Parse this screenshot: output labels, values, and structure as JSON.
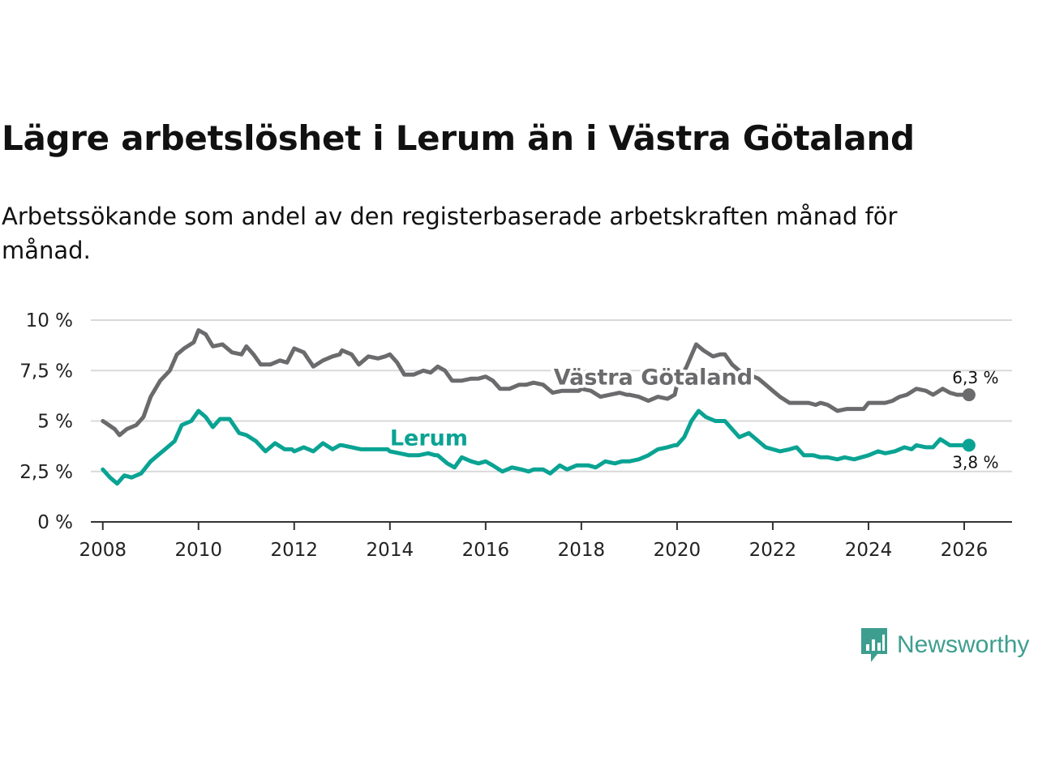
{
  "title": "Lägre arbetslöshet i Lerum än i Västra Götaland",
  "subtitle": "Arbetssökande som andel av den registerbaserade arbetskraften månad för månad.",
  "brand": "Newsworthy",
  "colors": {
    "lerum": "#0aa393",
    "vastra": "#6b6b6d",
    "grid": "#d9d9d9",
    "axis": "#333333",
    "brand": "#3d9e8f"
  },
  "chart_data": {
    "type": "line",
    "title": "Lägre arbetslöshet i Lerum än i Västra Götaland",
    "subtitle": "Arbetssökande som andel av den registerbaserade arbetskraften månad för månad.",
    "xlabel": "",
    "ylabel": "",
    "xlim": [
      2007.75,
      2027.0
    ],
    "ylim": [
      0,
      10
    ],
    "grid": true,
    "x_ticks": [
      2008,
      2010,
      2012,
      2014,
      2016,
      2018,
      2020,
      2022,
      2024,
      2026
    ],
    "x_tick_labels": [
      "2008",
      "2010",
      "2012",
      "2014",
      "2016",
      "2018",
      "2020",
      "2022",
      "2024",
      "2026"
    ],
    "y_ticks": [
      0,
      2.5,
      5,
      7.5,
      10
    ],
    "y_tick_labels": [
      "0 %",
      "2,5 %",
      "5 %",
      "7,5 %",
      "10 %"
    ],
    "series": [
      {
        "name": "Västra Götaland",
        "color": "#6b6b6d",
        "end_label": "6,3 %",
        "points": [
          [
            2008.0,
            5.0
          ],
          [
            2008.25,
            4.6
          ],
          [
            2008.35,
            4.3
          ],
          [
            2008.5,
            4.6
          ],
          [
            2008.7,
            4.8
          ],
          [
            2008.85,
            5.2
          ],
          [
            2009.0,
            6.2
          ],
          [
            2009.2,
            7.0
          ],
          [
            2009.4,
            7.5
          ],
          [
            2009.55,
            8.3
          ],
          [
            2009.7,
            8.6
          ],
          [
            2009.9,
            8.9
          ],
          [
            2010.0,
            9.5
          ],
          [
            2010.15,
            9.3
          ],
          [
            2010.3,
            8.7
          ],
          [
            2010.5,
            8.8
          ],
          [
            2010.7,
            8.4
          ],
          [
            2010.9,
            8.3
          ],
          [
            2011.0,
            8.7
          ],
          [
            2011.15,
            8.3
          ],
          [
            2011.3,
            7.8
          ],
          [
            2011.5,
            7.8
          ],
          [
            2011.7,
            8.0
          ],
          [
            2011.85,
            7.9
          ],
          [
            2012.0,
            8.6
          ],
          [
            2012.2,
            8.4
          ],
          [
            2012.4,
            7.7
          ],
          [
            2012.6,
            8.0
          ],
          [
            2012.8,
            8.2
          ],
          [
            2012.95,
            8.3
          ],
          [
            2013.0,
            8.5
          ],
          [
            2013.2,
            8.3
          ],
          [
            2013.35,
            7.8
          ],
          [
            2013.55,
            8.2
          ],
          [
            2013.75,
            8.1
          ],
          [
            2013.9,
            8.2
          ],
          [
            2014.0,
            8.3
          ],
          [
            2014.15,
            7.9
          ],
          [
            2014.3,
            7.3
          ],
          [
            2014.5,
            7.3
          ],
          [
            2014.7,
            7.5
          ],
          [
            2014.85,
            7.4
          ],
          [
            2015.0,
            7.7
          ],
          [
            2015.15,
            7.5
          ],
          [
            2015.3,
            7.0
          ],
          [
            2015.5,
            7.0
          ],
          [
            2015.7,
            7.1
          ],
          [
            2015.85,
            7.1
          ],
          [
            2016.0,
            7.2
          ],
          [
            2016.15,
            7.0
          ],
          [
            2016.3,
            6.6
          ],
          [
            2016.5,
            6.6
          ],
          [
            2016.7,
            6.8
          ],
          [
            2016.85,
            6.8
          ],
          [
            2017.0,
            6.9
          ],
          [
            2017.2,
            6.8
          ],
          [
            2017.4,
            6.4
          ],
          [
            2017.6,
            6.5
          ],
          [
            2017.8,
            6.5
          ],
          [
            2017.95,
            6.5
          ],
          [
            2018.0,
            6.6
          ],
          [
            2018.2,
            6.5
          ],
          [
            2018.4,
            6.2
          ],
          [
            2018.6,
            6.3
          ],
          [
            2018.8,
            6.4
          ],
          [
            2018.95,
            6.3
          ],
          [
            2019.0,
            6.3
          ],
          [
            2019.2,
            6.2
          ],
          [
            2019.4,
            6.0
          ],
          [
            2019.6,
            6.2
          ],
          [
            2019.8,
            6.1
          ],
          [
            2019.95,
            6.3
          ],
          [
            2020.0,
            6.8
          ],
          [
            2020.2,
            7.7
          ],
          [
            2020.4,
            8.8
          ],
          [
            2020.55,
            8.5
          ],
          [
            2020.75,
            8.2
          ],
          [
            2020.9,
            8.3
          ],
          [
            2021.0,
            8.3
          ],
          [
            2021.15,
            7.8
          ],
          [
            2021.3,
            7.5
          ],
          [
            2021.5,
            7.3
          ],
          [
            2021.7,
            7.1
          ],
          [
            2021.85,
            6.8
          ],
          [
            2022.0,
            6.5
          ],
          [
            2022.15,
            6.2
          ],
          [
            2022.35,
            5.9
          ],
          [
            2022.55,
            5.9
          ],
          [
            2022.75,
            5.9
          ],
          [
            2022.9,
            5.8
          ],
          [
            2023.0,
            5.9
          ],
          [
            2023.15,
            5.8
          ],
          [
            2023.35,
            5.5
          ],
          [
            2023.55,
            5.6
          ],
          [
            2023.75,
            5.6
          ],
          [
            2023.9,
            5.6
          ],
          [
            2024.0,
            5.9
          ],
          [
            2024.15,
            5.9
          ],
          [
            2024.35,
            5.9
          ],
          [
            2024.5,
            6.0
          ],
          [
            2024.65,
            6.2
          ],
          [
            2024.8,
            6.3
          ],
          [
            2025.0,
            6.6
          ],
          [
            2025.2,
            6.5
          ],
          [
            2025.35,
            6.3
          ],
          [
            2025.55,
            6.6
          ],
          [
            2025.7,
            6.4
          ],
          [
            2025.85,
            6.3
          ],
          [
            2026.1,
            6.3
          ]
        ]
      },
      {
        "name": "Lerum",
        "color": "#0aa393",
        "end_label": "3,8 %",
        "points": [
          [
            2008.0,
            2.6
          ],
          [
            2008.15,
            2.2
          ],
          [
            2008.3,
            1.9
          ],
          [
            2008.45,
            2.3
          ],
          [
            2008.6,
            2.2
          ],
          [
            2008.8,
            2.4
          ],
          [
            2009.0,
            3.0
          ],
          [
            2009.15,
            3.3
          ],
          [
            2009.3,
            3.6
          ],
          [
            2009.5,
            4.0
          ],
          [
            2009.65,
            4.8
          ],
          [
            2009.85,
            5.0
          ],
          [
            2010.0,
            5.5
          ],
          [
            2010.15,
            5.2
          ],
          [
            2010.3,
            4.7
          ],
          [
            2010.45,
            5.1
          ],
          [
            2010.65,
            5.1
          ],
          [
            2010.85,
            4.4
          ],
          [
            2011.0,
            4.3
          ],
          [
            2011.2,
            4.0
          ],
          [
            2011.4,
            3.5
          ],
          [
            2011.6,
            3.9
          ],
          [
            2011.8,
            3.6
          ],
          [
            2011.95,
            3.6
          ],
          [
            2012.0,
            3.5
          ],
          [
            2012.2,
            3.7
          ],
          [
            2012.4,
            3.5
          ],
          [
            2012.6,
            3.9
          ],
          [
            2012.8,
            3.6
          ],
          [
            2012.95,
            3.8
          ],
          [
            2013.0,
            3.8
          ],
          [
            2013.2,
            3.7
          ],
          [
            2013.4,
            3.6
          ],
          [
            2013.6,
            3.6
          ],
          [
            2013.8,
            3.6
          ],
          [
            2013.95,
            3.6
          ],
          [
            2014.0,
            3.5
          ],
          [
            2014.2,
            3.4
          ],
          [
            2014.4,
            3.3
          ],
          [
            2014.6,
            3.3
          ],
          [
            2014.8,
            3.4
          ],
          [
            2014.95,
            3.3
          ],
          [
            2015.0,
            3.3
          ],
          [
            2015.2,
            2.9
          ],
          [
            2015.35,
            2.7
          ],
          [
            2015.5,
            3.2
          ],
          [
            2015.7,
            3.0
          ],
          [
            2015.85,
            2.9
          ],
          [
            2016.0,
            3.0
          ],
          [
            2016.15,
            2.8
          ],
          [
            2016.35,
            2.5
          ],
          [
            2016.55,
            2.7
          ],
          [
            2016.75,
            2.6
          ],
          [
            2016.9,
            2.5
          ],
          [
            2017.0,
            2.6
          ],
          [
            2017.2,
            2.6
          ],
          [
            2017.35,
            2.4
          ],
          [
            2017.55,
            2.8
          ],
          [
            2017.7,
            2.6
          ],
          [
            2017.9,
            2.8
          ],
          [
            2018.0,
            2.8
          ],
          [
            2018.15,
            2.8
          ],
          [
            2018.3,
            2.7
          ],
          [
            2018.5,
            3.0
          ],
          [
            2018.7,
            2.9
          ],
          [
            2018.85,
            3.0
          ],
          [
            2019.0,
            3.0
          ],
          [
            2019.2,
            3.1
          ],
          [
            2019.4,
            3.3
          ],
          [
            2019.6,
            3.6
          ],
          [
            2019.8,
            3.7
          ],
          [
            2019.95,
            3.8
          ],
          [
            2020.0,
            3.8
          ],
          [
            2020.15,
            4.2
          ],
          [
            2020.3,
            5.0
          ],
          [
            2020.45,
            5.5
          ],
          [
            2020.6,
            5.2
          ],
          [
            2020.8,
            5.0
          ],
          [
            2021.0,
            5.0
          ],
          [
            2021.15,
            4.6
          ],
          [
            2021.3,
            4.2
          ],
          [
            2021.5,
            4.4
          ],
          [
            2021.7,
            4.0
          ],
          [
            2021.85,
            3.7
          ],
          [
            2022.0,
            3.6
          ],
          [
            2022.15,
            3.5
          ],
          [
            2022.35,
            3.6
          ],
          [
            2022.5,
            3.7
          ],
          [
            2022.65,
            3.3
          ],
          [
            2022.85,
            3.3
          ],
          [
            2023.0,
            3.2
          ],
          [
            2023.15,
            3.2
          ],
          [
            2023.35,
            3.1
          ],
          [
            2023.5,
            3.2
          ],
          [
            2023.7,
            3.1
          ],
          [
            2023.85,
            3.2
          ],
          [
            2024.0,
            3.3
          ],
          [
            2024.2,
            3.5
          ],
          [
            2024.35,
            3.4
          ],
          [
            2024.55,
            3.5
          ],
          [
            2024.75,
            3.7
          ],
          [
            2024.9,
            3.6
          ],
          [
            2025.0,
            3.8
          ],
          [
            2025.2,
            3.7
          ],
          [
            2025.35,
            3.7
          ],
          [
            2025.5,
            4.1
          ],
          [
            2025.7,
            3.8
          ],
          [
            2025.85,
            3.8
          ],
          [
            2026.1,
            3.8
          ]
        ]
      }
    ],
    "annotations": [
      {
        "text": "Västra Götaland",
        "series": "Västra Götaland",
        "x": 2019.5,
        "y": 6.8
      },
      {
        "text": "Lerum",
        "series": "Lerum",
        "x": 2014.0,
        "y": 3.8
      }
    ]
  }
}
